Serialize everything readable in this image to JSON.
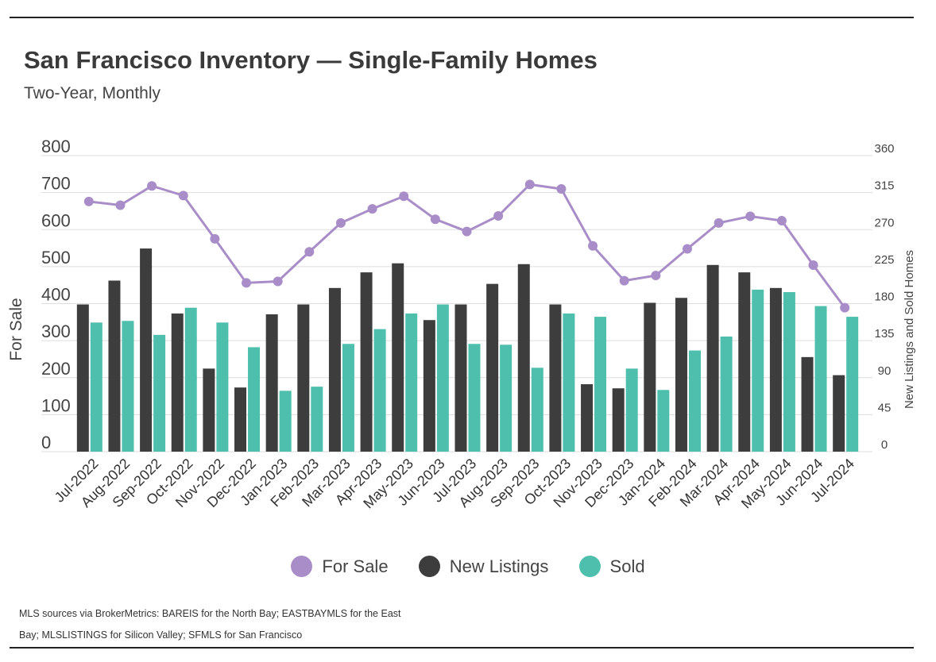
{
  "header": {
    "title": "San Francisco Inventory — Single-Family Homes",
    "subtitle": "Two-Year, Monthly"
  },
  "colors": {
    "for_sale": "#a98dc8",
    "new_listings": "#3d3d3d",
    "sold": "#4ebfac",
    "grid": "#dddddd"
  },
  "chart_data": {
    "type": "bar",
    "categories": [
      "Jul-2022",
      "Aug-2022",
      "Sep-2022",
      "Oct-2022",
      "Nov-2022",
      "Dec-2022",
      "Jan-2023",
      "Feb-2023",
      "Mar-2023",
      "Apr-2023",
      "May-2023",
      "Jun-2023",
      "Jul-2023",
      "Aug-2023",
      "Sep-2023",
      "Oct-2023",
      "Nov-2023",
      "Dec-2023",
      "Jan-2024",
      "Feb-2024",
      "Mar-2024",
      "Apr-2024",
      "May-2024",
      "Jun-2024",
      "Jul-2024"
    ],
    "series": [
      {
        "name": "For Sale",
        "type": "line",
        "axis": "left",
        "values": [
          676,
          666,
          718,
          692,
          575,
          456,
          460,
          540,
          618,
          656,
          690,
          628,
          595,
          637,
          722,
          710,
          556,
          462,
          476,
          548,
          618,
          636,
          624,
          504,
          389
        ]
      },
      {
        "name": "New Listings",
        "type": "bar",
        "axis": "right",
        "values": [
          179,
          208,
          247,
          168,
          101,
          78,
          167,
          179,
          199,
          218,
          229,
          160,
          179,
          204,
          228,
          179,
          82,
          77,
          181,
          187,
          227,
          218,
          199,
          115,
          93
        ]
      },
      {
        "name": "Sold",
        "type": "bar",
        "axis": "right",
        "values": [
          157,
          159,
          142,
          175,
          157,
          127,
          74,
          79,
          131,
          149,
          168,
          179,
          131,
          130,
          102,
          168,
          164,
          101,
          75,
          123,
          140,
          197,
          194,
          177,
          164
        ]
      }
    ],
    "y_left": {
      "label": "For Sale",
      "ticks": [
        0,
        100,
        200,
        300,
        400,
        500,
        600,
        700,
        800
      ],
      "ylim": [
        0,
        800
      ]
    },
    "y_right": {
      "label": "New Listings and Sold Homes",
      "ticks": [
        0,
        45,
        90,
        135,
        180,
        225,
        270,
        315,
        360
      ],
      "ylim": [
        0,
        360
      ]
    },
    "grid": true,
    "legend": "bottom"
  },
  "legend": {
    "items": [
      {
        "label": "For Sale"
      },
      {
        "label": "New Listings"
      },
      {
        "label": "Sold"
      }
    ]
  },
  "footer": {
    "source_line1": "MLS sources via BrokerMetrics: BAREIS for the North Bay; EASTBAYMLS for the East",
    "source_line2": "Bay; MLSLISTINGS for Silicon Valley; SFMLS for San Francisco"
  }
}
